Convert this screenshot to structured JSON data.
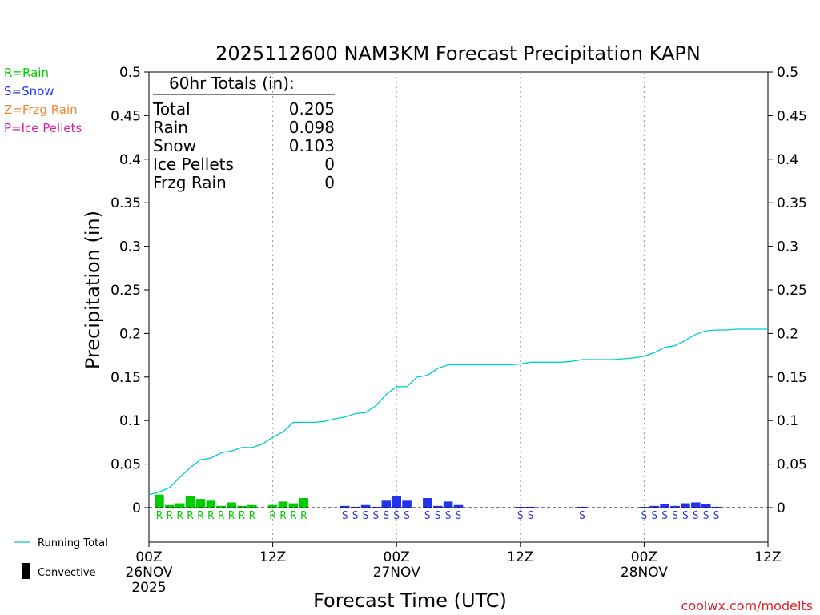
{
  "chart_data": {
    "type": "bar",
    "title": "2025112600 NAM3KM Forecast Precipitation KAPN",
    "xlabel": "Forecast Time (UTC)",
    "ylabel": "Precipitation (in)",
    "ylim": [
      0,
      0.5
    ],
    "xlim_hours": [
      0,
      60
    ],
    "y_ticks": [
      "0",
      "0.05",
      "0.1",
      "0.15",
      "0.2",
      "0.25",
      "0.3",
      "0.35",
      "0.4",
      "0.45",
      "0.5"
    ],
    "y_tick_values": [
      0,
      0.05,
      0.1,
      0.15,
      0.2,
      0.25,
      0.3,
      0.35,
      0.4,
      0.45,
      0.5
    ],
    "x_ticks": [
      {
        "hour": 0,
        "label": "00Z",
        "date": "26NOV",
        "year": "2025"
      },
      {
        "hour": 12,
        "label": "12Z",
        "date": "",
        "year": ""
      },
      {
        "hour": 24,
        "label": "00Z",
        "date": "27NOV",
        "year": ""
      },
      {
        "hour": 36,
        "label": "12Z",
        "date": "",
        "year": ""
      },
      {
        "hour": 48,
        "label": "00Z",
        "date": "28NOV",
        "year": ""
      },
      {
        "hour": 60,
        "label": "12Z",
        "date": "",
        "year": ""
      }
    ],
    "grid_vertical_hours": [
      12,
      24,
      36,
      48
    ],
    "legend_types": [
      {
        "code": "R",
        "text": "R=Rain",
        "color": "#00cc00"
      },
      {
        "code": "S",
        "text": "S=Snow",
        "color": "#2233ee"
      },
      {
        "code": "Z",
        "text": "Z=Frzg Rain",
        "color": "#ee8833"
      },
      {
        "code": "P",
        "text": "P=Ice Pellets",
        "color": "#dd2299"
      }
    ],
    "legend_lines": [
      {
        "text": "Running Total",
        "color": "#00cccc"
      },
      {
        "text": "Convective",
        "color": "#000000"
      }
    ],
    "totals": {
      "header": "60hr Totals (in):",
      "rows": [
        {
          "label": "Total",
          "value": "0.205"
        },
        {
          "label": "Rain",
          "value": "0.098"
        },
        {
          "label": "Snow",
          "value": "0.103"
        },
        {
          "label": "Ice Pellets",
          "value": "0"
        },
        {
          "label": "Frzg Rain",
          "value": "0"
        }
      ]
    },
    "bars": [
      {
        "hour": 1,
        "value": 0.015,
        "type": "R"
      },
      {
        "hour": 2,
        "value": 0.003,
        "type": "R"
      },
      {
        "hour": 3,
        "value": 0.005,
        "type": "R"
      },
      {
        "hour": 4,
        "value": 0.013,
        "type": "R"
      },
      {
        "hour": 5,
        "value": 0.01,
        "type": "R"
      },
      {
        "hour": 6,
        "value": 0.008,
        "type": "R"
      },
      {
        "hour": 7,
        "value": 0.002,
        "type": "R"
      },
      {
        "hour": 8,
        "value": 0.006,
        "type": "R"
      },
      {
        "hour": 9,
        "value": 0.002,
        "type": "R"
      },
      {
        "hour": 10,
        "value": 0.003,
        "type": "R"
      },
      {
        "hour": 12,
        "value": 0.003,
        "type": "R"
      },
      {
        "hour": 13,
        "value": 0.007,
        "type": "R"
      },
      {
        "hour": 14,
        "value": 0.005,
        "type": "R"
      },
      {
        "hour": 15,
        "value": 0.011,
        "type": "R"
      },
      {
        "hour": 19,
        "value": 0.002,
        "type": "S"
      },
      {
        "hour": 20,
        "value": 0.001,
        "type": "S"
      },
      {
        "hour": 21,
        "value": 0.003,
        "type": "S"
      },
      {
        "hour": 22,
        "value": 0.001,
        "type": "S"
      },
      {
        "hour": 23,
        "value": 0.008,
        "type": "S"
      },
      {
        "hour": 24,
        "value": 0.013,
        "type": "S"
      },
      {
        "hour": 25,
        "value": 0.008,
        "type": "S"
      },
      {
        "hour": 27,
        "value": 0.011,
        "type": "S"
      },
      {
        "hour": 28,
        "value": 0.002,
        "type": "S"
      },
      {
        "hour": 29,
        "value": 0.007,
        "type": "S"
      },
      {
        "hour": 30,
        "value": 0.003,
        "type": "S"
      },
      {
        "hour": 36,
        "value": 0.0005,
        "type": "S"
      },
      {
        "hour": 37,
        "value": 0.001,
        "type": "S"
      },
      {
        "hour": 42,
        "value": 0.001,
        "type": "S"
      },
      {
        "hour": 48,
        "value": 0.0005,
        "type": "S"
      },
      {
        "hour": 49,
        "value": 0.002,
        "type": "S"
      },
      {
        "hour": 50,
        "value": 0.004,
        "type": "S"
      },
      {
        "hour": 51,
        "value": 0.002,
        "type": "S"
      },
      {
        "hour": 52,
        "value": 0.005,
        "type": "S"
      },
      {
        "hour": 53,
        "value": 0.006,
        "type": "S"
      },
      {
        "hour": 54,
        "value": 0.004,
        "type": "S"
      },
      {
        "hour": 55,
        "value": 0.001,
        "type": "S"
      }
    ],
    "type_labels": [
      {
        "hour": 1,
        "type": "R"
      },
      {
        "hour": 2,
        "type": "R"
      },
      {
        "hour": 3,
        "type": "R"
      },
      {
        "hour": 4,
        "type": "R"
      },
      {
        "hour": 5,
        "type": "R"
      },
      {
        "hour": 6,
        "type": "R"
      },
      {
        "hour": 7,
        "type": "R"
      },
      {
        "hour": 8,
        "type": "R"
      },
      {
        "hour": 9,
        "type": "R"
      },
      {
        "hour": 10,
        "type": "R"
      },
      {
        "hour": 12,
        "type": "R"
      },
      {
        "hour": 13,
        "type": "R"
      },
      {
        "hour": 14,
        "type": "R"
      },
      {
        "hour": 15,
        "type": "R"
      },
      {
        "hour": 19,
        "type": "S"
      },
      {
        "hour": 20,
        "type": "S"
      },
      {
        "hour": 21,
        "type": "S"
      },
      {
        "hour": 22,
        "type": "S"
      },
      {
        "hour": 23,
        "type": "S"
      },
      {
        "hour": 24,
        "type": "S"
      },
      {
        "hour": 25,
        "type": "S"
      },
      {
        "hour": 27,
        "type": "S"
      },
      {
        "hour": 28,
        "type": "S"
      },
      {
        "hour": 29,
        "type": "S"
      },
      {
        "hour": 30,
        "type": "S"
      },
      {
        "hour": 36,
        "type": "S"
      },
      {
        "hour": 37,
        "type": "S"
      },
      {
        "hour": 42,
        "type": "S"
      },
      {
        "hour": 48,
        "type": "S"
      },
      {
        "hour": 49,
        "type": "S"
      },
      {
        "hour": 50,
        "type": "S"
      },
      {
        "hour": 51,
        "type": "S"
      },
      {
        "hour": 52,
        "type": "S"
      },
      {
        "hour": 53,
        "type": "S"
      },
      {
        "hour": 54,
        "type": "S"
      },
      {
        "hour": 55,
        "type": "S"
      }
    ],
    "running_total": {
      "hours": [
        0,
        1,
        2,
        3,
        4,
        5,
        6,
        7,
        8,
        9,
        10,
        11,
        12,
        13,
        14,
        15,
        16,
        17,
        18,
        19,
        20,
        21,
        22,
        23,
        24,
        25,
        26,
        27,
        28,
        29,
        30,
        31,
        32,
        33,
        34,
        35,
        36,
        37,
        38,
        39,
        40,
        41,
        42,
        43,
        44,
        45,
        46,
        47,
        48,
        49,
        50,
        51,
        52,
        53,
        54,
        55,
        56,
        57,
        58,
        59,
        60
      ],
      "values": [
        0.015,
        0.018,
        0.023,
        0.035,
        0.046,
        0.055,
        0.057,
        0.063,
        0.065,
        0.069,
        0.069,
        0.073,
        0.081,
        0.087,
        0.098,
        0.098,
        0.098,
        0.099,
        0.102,
        0.104,
        0.108,
        0.109,
        0.117,
        0.13,
        0.139,
        0.139,
        0.15,
        0.152,
        0.16,
        0.164,
        0.164,
        0.164,
        0.164,
        0.164,
        0.164,
        0.164,
        0.165,
        0.167,
        0.167,
        0.167,
        0.167,
        0.168,
        0.17,
        0.17,
        0.17,
        0.17,
        0.171,
        0.172,
        0.174,
        0.178,
        0.184,
        0.186,
        0.192,
        0.199,
        0.203,
        0.204,
        0.204,
        0.205,
        0.205,
        0.205,
        0.205
      ]
    },
    "credit": "coolwx.com/modelts"
  }
}
